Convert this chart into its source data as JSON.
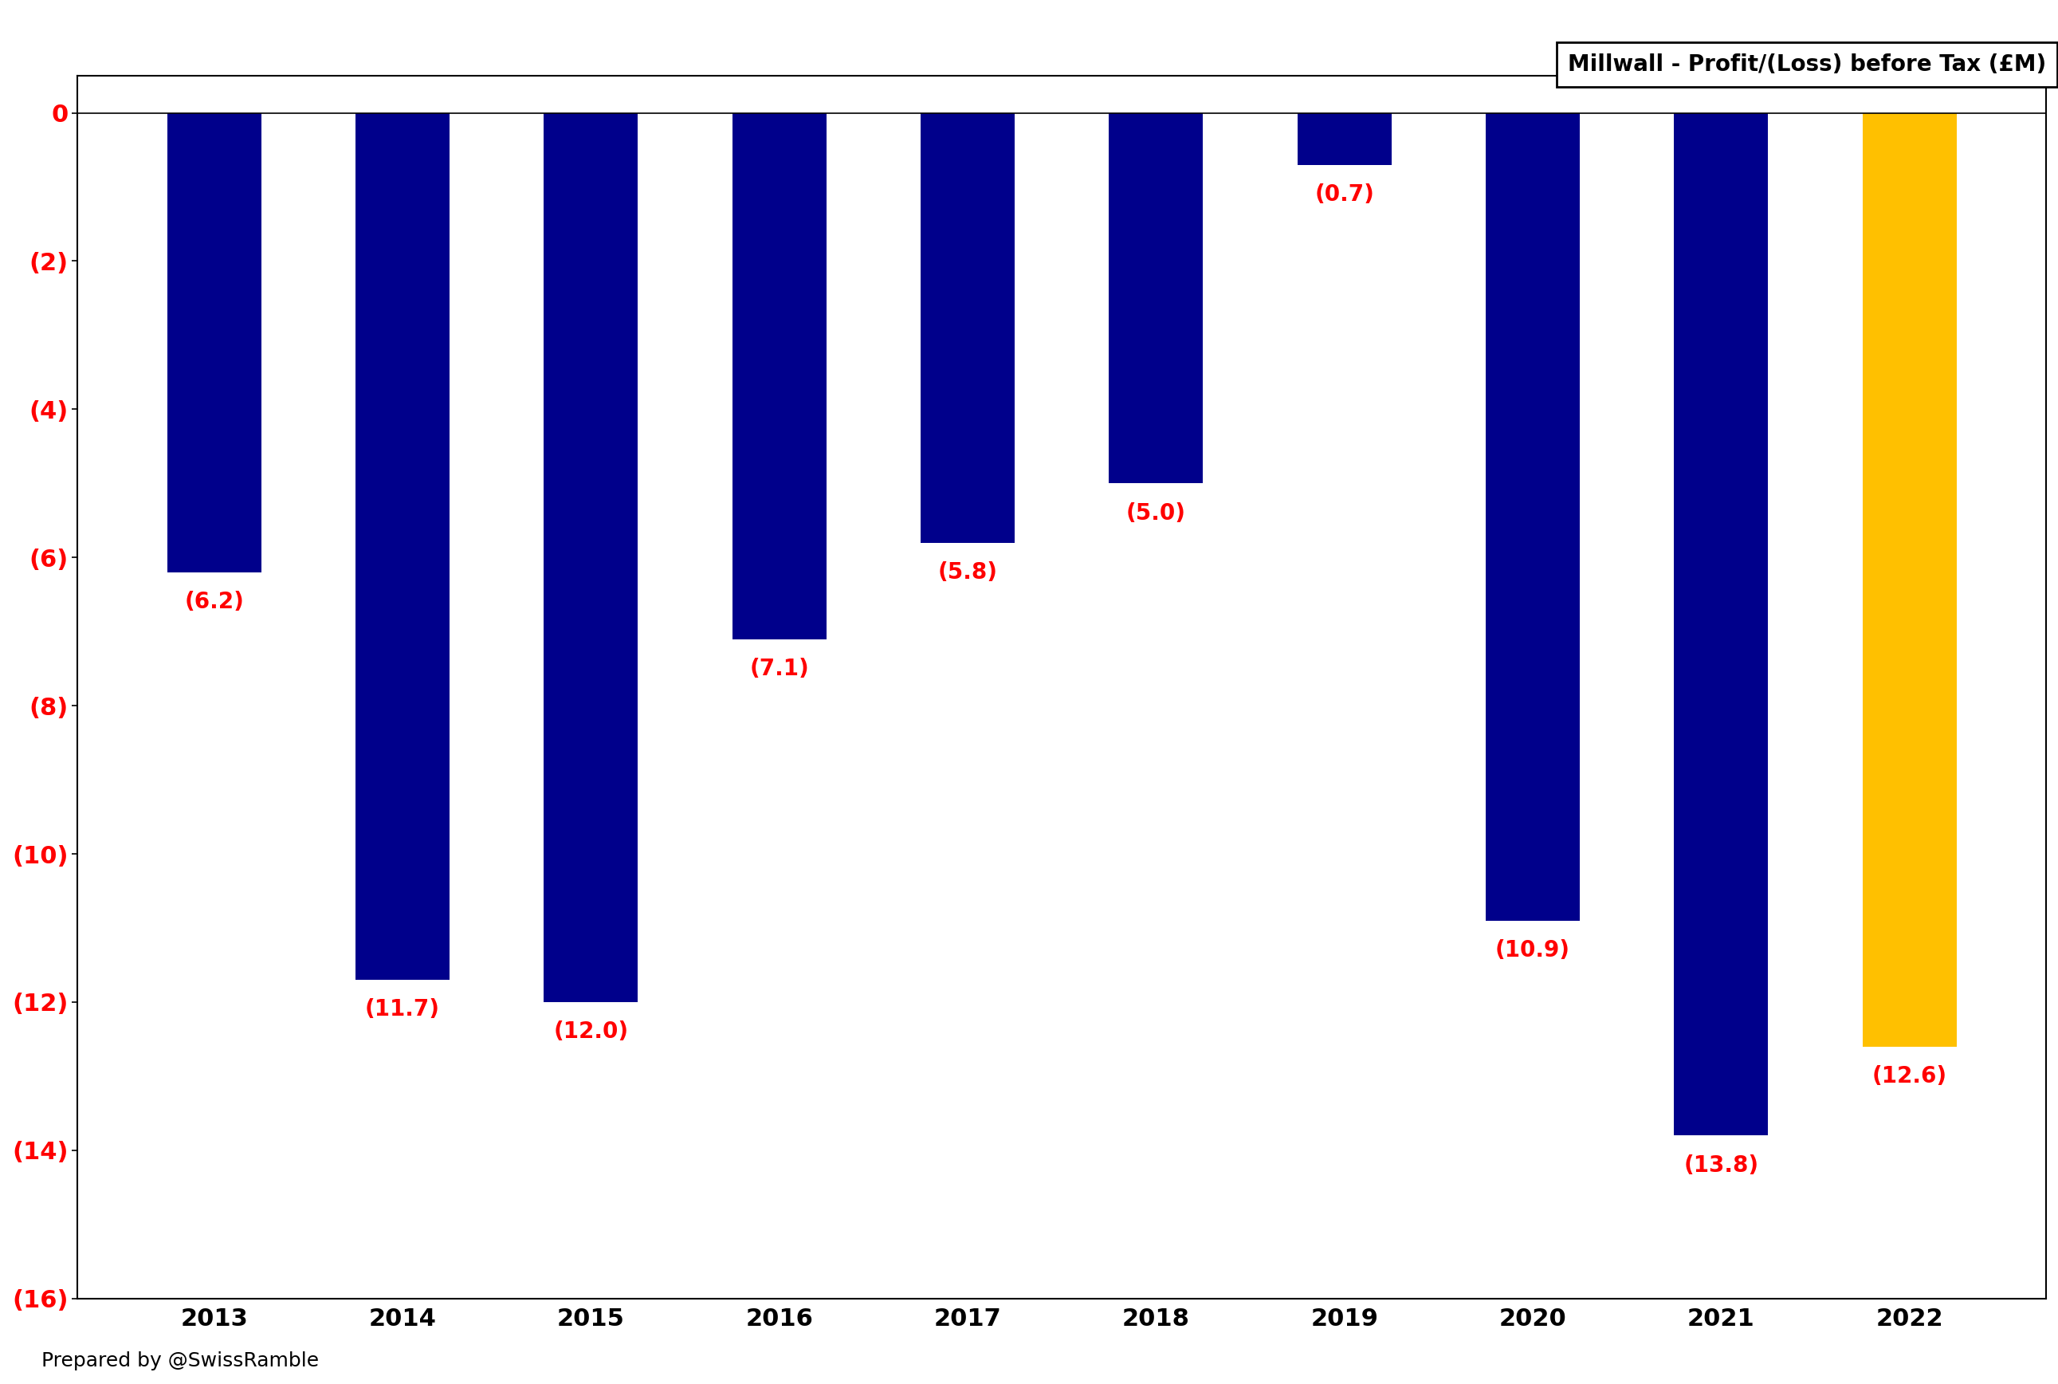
{
  "title": "Millwall - Profit/(Loss) before Tax (£M)",
  "years": [
    "2013",
    "2014",
    "2015",
    "2016",
    "2017",
    "2018",
    "2019",
    "2020",
    "2021",
    "2022"
  ],
  "values": [
    -6.2,
    -11.7,
    -12.0,
    -7.1,
    -5.8,
    -5.0,
    -0.7,
    -10.9,
    -13.8,
    -12.6
  ],
  "bar_colors": [
    "#00008B",
    "#00008B",
    "#00008B",
    "#00008B",
    "#00008B",
    "#00008B",
    "#00008B",
    "#00008B",
    "#00008B",
    "#FFC000"
  ],
  "label_color": "#FF0000",
  "ylim": [
    -16,
    0.5
  ],
  "yticks": [
    0,
    -2,
    -4,
    -6,
    -8,
    -10,
    -12,
    -14,
    -16
  ],
  "ytick_labels": [
    "0",
    "(2)",
    "(4)",
    "(6)",
    "(8)",
    "(10)",
    "(12)",
    "(14)",
    "(16)"
  ],
  "footer": "Prepared by @SwissRamble",
  "title_fontsize": 20,
  "tick_fontsize": 22,
  "label_fontsize": 20,
  "footer_fontsize": 18,
  "bar_width": 0.5
}
